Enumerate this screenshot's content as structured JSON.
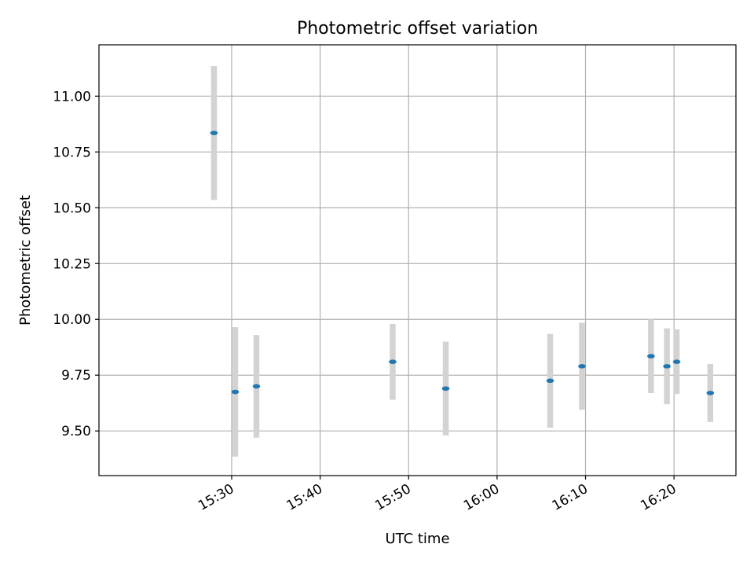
{
  "chart_data": {
    "type": "scatter",
    "title": "Photometric offset variation",
    "xlabel": "UTC time",
    "ylabel": "Photometric offset",
    "grid": true,
    "legend": "none",
    "x_range_minutes": [
      15.0,
      87.0
    ],
    "ylim": [
      9.3,
      11.23
    ],
    "x_ticks": [
      {
        "minute": 30,
        "label": "15:30"
      },
      {
        "minute": 40,
        "label": "15:40"
      },
      {
        "minute": 50,
        "label": "15:50"
      },
      {
        "minute": 60,
        "label": "16:00"
      },
      {
        "minute": 70,
        "label": "16:10"
      },
      {
        "minute": 80,
        "label": "16:20"
      }
    ],
    "y_ticks": [
      {
        "value": 9.5,
        "label": "9.50"
      },
      {
        "value": 9.75,
        "label": "9.75"
      },
      {
        "value": 10.0,
        "label": "10.00"
      },
      {
        "value": 10.25,
        "label": "10.25"
      },
      {
        "value": 10.5,
        "label": "10.50"
      },
      {
        "value": 10.75,
        "label": "10.75"
      },
      {
        "value": 11.0,
        "label": "11.00"
      }
    ],
    "series": [
      {
        "name": "offset",
        "color": "#1f77b4",
        "errorbar_color": "#d3d3d3",
        "points": [
          {
            "time": "15:28",
            "minute": 28.0,
            "value": 10.835,
            "error": 0.3
          },
          {
            "time": "15:30",
            "minute": 30.4,
            "value": 9.675,
            "error": 0.29
          },
          {
            "time": "15:33",
            "minute": 32.8,
            "value": 9.7,
            "error": 0.23
          },
          {
            "time": "15:48",
            "minute": 48.2,
            "value": 9.81,
            "error": 0.17
          },
          {
            "time": "15:54",
            "minute": 54.2,
            "value": 9.69,
            "error": 0.21
          },
          {
            "time": "16:06",
            "minute": 66.0,
            "value": 9.725,
            "error": 0.21
          },
          {
            "time": "16:10",
            "minute": 69.6,
            "value": 9.79,
            "error": 0.195
          },
          {
            "time": "16:17",
            "minute": 77.4,
            "value": 9.835,
            "error": 0.165
          },
          {
            "time": "16:19",
            "minute": 79.2,
            "value": 9.79,
            "error": 0.17
          },
          {
            "time": "16:20",
            "minute": 80.3,
            "value": 9.81,
            "error": 0.145
          },
          {
            "time": "16:24",
            "minute": 84.1,
            "value": 9.67,
            "error": 0.13
          }
        ]
      }
    ]
  }
}
